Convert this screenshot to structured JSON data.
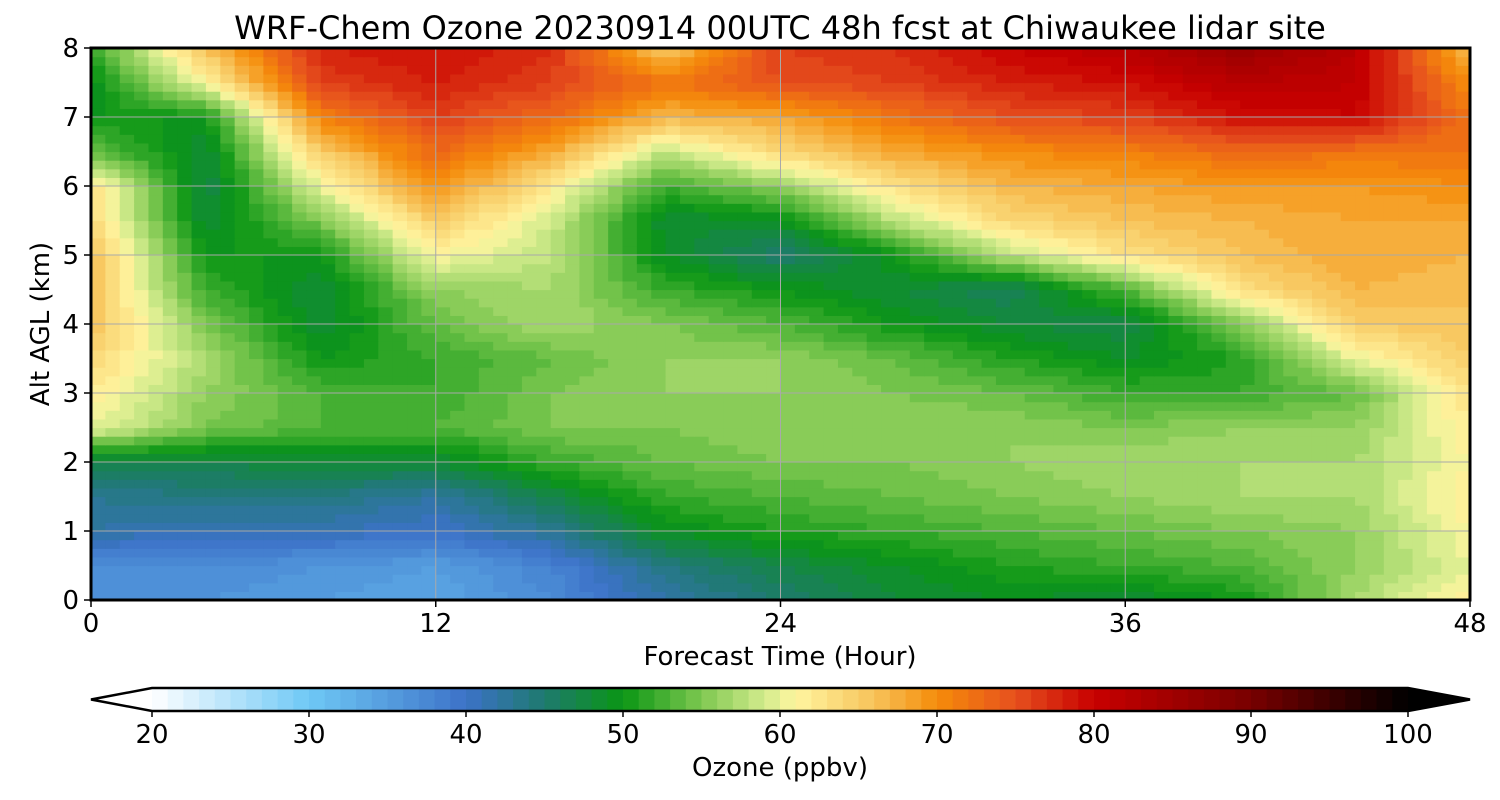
{
  "chart_data": {
    "type": "heatmap",
    "title": "WRF-Chem Ozone  20230914 00UTC 48h fcst at Chiwaukee lidar site",
    "xlabel": "Forecast Time (Hour)",
    "ylabel": "Alt AGL (km)",
    "xlim": [
      0,
      48
    ],
    "ylim": [
      0,
      8
    ],
    "xticks": [
      0,
      12,
      24,
      36,
      48
    ],
    "yticks": [
      0,
      1,
      2,
      3,
      4,
      5,
      6,
      7,
      8
    ],
    "grid": true,
    "x": [
      0,
      4,
      8,
      12,
      16,
      20,
      24,
      28,
      32,
      36,
      40,
      44,
      48
    ],
    "y": [
      0,
      0.5,
      1,
      1.5,
      2,
      2.5,
      3,
      3.5,
      4,
      4.5,
      5,
      5.5,
      6,
      6.5,
      7,
      7.5,
      8
    ],
    "z": [
      [
        36,
        36,
        35,
        34,
        37,
        42,
        45,
        48,
        49,
        48,
        50,
        57,
        62
      ],
      [
        37,
        37,
        36,
        35,
        38,
        44,
        47,
        49,
        51,
        52,
        53,
        56,
        60
      ],
      [
        42,
        41,
        41,
        40,
        43,
        49,
        51,
        52,
        53,
        54,
        55,
        56,
        61
      ],
      [
        43,
        44,
        44,
        42,
        47,
        52,
        53,
        54,
        55,
        56,
        57,
        57,
        62
      ],
      [
        47,
        47,
        48,
        48,
        52,
        54,
        55,
        55,
        56,
        57,
        57,
        57,
        61
      ],
      [
        60,
        55,
        53,
        53,
        55,
        55,
        56,
        56,
        56,
        55,
        56,
        56,
        62
      ],
      [
        62,
        56,
        53,
        52,
        55,
        56,
        56,
        55,
        54,
        52,
        52,
        54,
        63
      ],
      [
        64,
        57,
        50,
        52,
        54,
        56,
        56,
        54,
        51,
        49,
        51,
        60,
        65
      ],
      [
        66,
        55,
        48,
        54,
        57,
        55,
        53,
        50,
        48,
        47,
        55,
        65,
        66
      ],
      [
        66,
        52,
        48,
        56,
        57,
        52,
        50,
        48,
        46,
        53,
        63,
        67,
        66
      ],
      [
        66,
        50,
        50,
        61,
        58,
        49,
        45,
        50,
        58,
        63,
        66,
        68,
        67
      ],
      [
        64,
        48,
        55,
        65,
        59,
        48,
        49,
        58,
        64,
        66,
        67,
        68,
        68
      ],
      [
        63,
        47,
        60,
        70,
        62,
        52,
        56,
        63,
        67,
        68,
        69,
        69,
        70
      ],
      [
        54,
        48,
        65,
        73,
        68,
        58,
        64,
        68,
        70,
        71,
        73,
        72,
        72
      ],
      [
        50,
        50,
        71,
        76,
        73,
        67,
        68,
        72,
        75,
        76,
        79,
        80,
        72
      ],
      [
        49,
        61,
        76,
        78,
        76,
        72,
        75,
        76,
        78,
        79,
        82,
        81,
        70
      ],
      [
        52,
        66,
        78,
        79,
        77,
        65,
        76,
        77,
        80,
        82,
        86,
        82,
        66
      ]
    ],
    "colorbar": {
      "label": "Ozone  (ppbv)",
      "min": 20,
      "max": 100,
      "ticks": [
        20,
        30,
        40,
        50,
        60,
        70,
        80,
        90,
        100
      ],
      "extend": "both",
      "stops": [
        {
          "v": 20,
          "color": "#ffffff"
        },
        {
          "v": 30,
          "color": "#6ec8f5"
        },
        {
          "v": 40,
          "color": "#3c72c8"
        },
        {
          "v": 45,
          "color": "#1e7a6e"
        },
        {
          "v": 50,
          "color": "#0a9614"
        },
        {
          "v": 55,
          "color": "#7ec850"
        },
        {
          "v": 59,
          "color": "#d2eb8c"
        },
        {
          "v": 61,
          "color": "#fff5a0"
        },
        {
          "v": 66,
          "color": "#f7c35a"
        },
        {
          "v": 70,
          "color": "#f58c0a"
        },
        {
          "v": 75,
          "color": "#e6501e"
        },
        {
          "v": 80,
          "color": "#c80000"
        },
        {
          "v": 90,
          "color": "#780000"
        },
        {
          "v": 100,
          "color": "#000000"
        }
      ]
    }
  }
}
